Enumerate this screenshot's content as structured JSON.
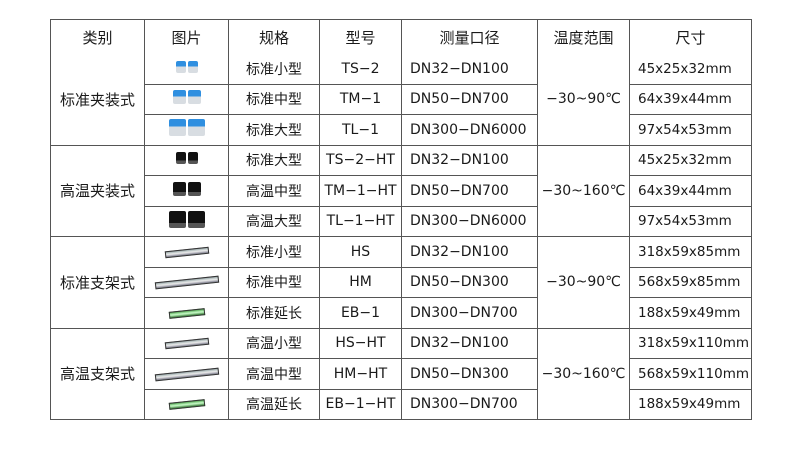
{
  "headers": [
    "类别",
    "图片",
    "规格",
    "型号",
    "测量口径",
    "温度范围",
    "尺寸"
  ],
  "groups": [
    {
      "category": "标准夹装式",
      "temp": "−30~90℃",
      "image_style": "blue-clamp-sensor",
      "rows": [
        {
          "spec": "标准小型",
          "model": "TS−2",
          "range": "DN32−DN100",
          "size": "45x25x32mm"
        },
        {
          "spec": "标准中型",
          "model": "TM−1",
          "range": "DN50−DN700",
          "size": "64x39x44mm"
        },
        {
          "spec": "标准大型",
          "model": "TL−1",
          "range": "DN300−DN6000",
          "size": "97x54x53mm"
        }
      ]
    },
    {
      "category": "高温夹装式",
      "temp": "−30~160℃",
      "image_style": "black-clamp-sensor",
      "rows": [
        {
          "spec": "标准大型",
          "model": "TS−2−HT",
          "range": "DN32−DN100",
          "size": "45x25x32mm"
        },
        {
          "spec": "高温中型",
          "model": "TM−1−HT",
          "range": "DN50−DN700",
          "size": "64x39x44mm"
        },
        {
          "spec": "高温大型",
          "model": "TL−1−HT",
          "range": "DN300−DN6000",
          "size": "97x54x53mm"
        }
      ]
    },
    {
      "category": "标准支架式",
      "temp": "−30~90℃",
      "image_style": "rail-mount-sensor",
      "rows": [
        {
          "spec": "标准小型",
          "model": "HS",
          "range": "DN32−DN100",
          "size": "318x59x85mm"
        },
        {
          "spec": "标准中型",
          "model": "HM",
          "range": "DN50−DN300",
          "size": "568x59x85mm"
        },
        {
          "spec": "标准延长",
          "model": "EB−1",
          "range": "DN300−DN700",
          "size": "188x59x49mm"
        }
      ]
    },
    {
      "category": "高温支架式",
      "temp": "−30~160℃",
      "image_style": "rail-mount-sensor",
      "rows": [
        {
          "spec": "高温小型",
          "model": "HS−HT",
          "range": "DN32−DN100",
          "size": "318x59x110mm"
        },
        {
          "spec": "高温中型",
          "model": "HM−HT",
          "range": "DN50−DN300",
          "size": "568x59x110mm"
        },
        {
          "spec": "高温延长",
          "model": "EB−1−HT",
          "range": "DN300−DN700",
          "size": "188x59x49mm"
        }
      ]
    }
  ]
}
